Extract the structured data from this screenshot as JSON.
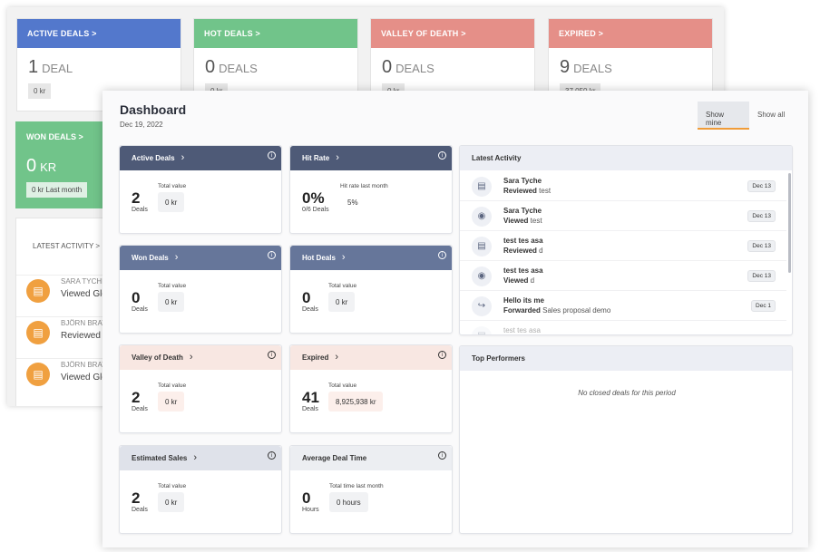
{
  "background": {
    "cards": [
      {
        "title": "ACTIVE DEALS >",
        "count": "1",
        "unit": "DEAL",
        "value": "0 kr",
        "color": "#5378cc"
      },
      {
        "title": "HOT DEALS >",
        "count": "0",
        "unit": "DEALS",
        "value": "0 kr",
        "color": "#71c48a"
      },
      {
        "title": "VALLEY OF DEATH >",
        "count": "0",
        "unit": "DEALS",
        "value": "0 kr",
        "color": "#e58f88"
      },
      {
        "title": "EXPIRED >",
        "count": "9",
        "unit": "DEALS",
        "value": "37,050 kr",
        "color": "#e58f88"
      }
    ],
    "won": {
      "title": "WON DEALS >",
      "count": "0",
      "unit": "KR",
      "value": "0 kr Last month",
      "color": "#71c48a"
    },
    "activity": {
      "title": "LATEST ACTIVITY >",
      "rows": [
        {
          "name": "SARA TYCHE",
          "verb": "Viewed Glo"
        },
        {
          "name": "BJÖRN BRAT",
          "verb": "Reviewed C"
        },
        {
          "name": "BJÖRN BRAT",
          "verb": "Viewed Glo"
        }
      ]
    }
  },
  "dashboard": {
    "title": "Dashboard",
    "date": "Dec 19, 2022",
    "show_mine": "Show mine",
    "show_all": "Show all",
    "cards": [
      {
        "title": "Active Deals",
        "big": "2",
        "sub": "Deals",
        "label": "Total value",
        "value": "0 kr"
      },
      {
        "title": "Hit Rate",
        "big": "0%",
        "sub": "0/6 Deals",
        "label": "Hit rate last month",
        "value": "5%"
      },
      {
        "title": "Won Deals",
        "big": "0",
        "sub": "Deals",
        "label": "Total value",
        "value": "0 kr"
      },
      {
        "title": "Hot Deals",
        "big": "0",
        "sub": "Deals",
        "label": "Total value",
        "value": "0 kr"
      },
      {
        "title": "Valley of Death",
        "big": "2",
        "sub": "Deals",
        "label": "Total value",
        "value": "0 kr"
      },
      {
        "title": "Expired",
        "big": "41",
        "sub": "Deals",
        "label": "Total value",
        "value": "8,925,938 kr"
      },
      {
        "title": "Estimated Sales",
        "big": "2",
        "sub": "Deals",
        "label": "Total value",
        "value": "0 kr"
      },
      {
        "title": "Average Deal Time",
        "big": "0",
        "sub": "Hours",
        "label": "Total time last month",
        "value": "0 hours"
      }
    ],
    "chevron": "›",
    "info": "i",
    "latest_activity": {
      "title": "Latest Activity",
      "items": [
        {
          "icon": "document-review-icon",
          "name": "Sara Tyche",
          "verb": "Reviewed",
          "object": "test",
          "date": "Dec 13"
        },
        {
          "icon": "eye-icon",
          "name": "Sara Tyche",
          "verb": "Viewed",
          "object": "test",
          "date": "Dec 13"
        },
        {
          "icon": "document-review-icon",
          "name": "test tes asa",
          "verb": "Reviewed",
          "object": "d",
          "date": "Dec 13"
        },
        {
          "icon": "eye-icon",
          "name": "test tes asa",
          "verb": "Viewed",
          "object": "d",
          "date": "Dec 13"
        },
        {
          "icon": "forward-icon",
          "name": "Hello its me",
          "verb": "Forwarded",
          "object": "Sales proposal demo",
          "date": "Dec 1"
        },
        {
          "icon": "document-review-icon",
          "name": "test tes asa",
          "verb": "",
          "object": "",
          "date": ""
        }
      ]
    },
    "top_performers": {
      "title": "Top Performers",
      "empty": "No closed deals for this period"
    }
  }
}
